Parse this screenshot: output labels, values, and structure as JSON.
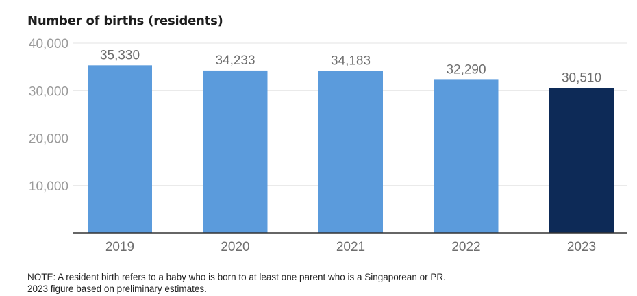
{
  "chart_data": {
    "type": "bar",
    "title": "Number of births (residents)",
    "categories": [
      "2019",
      "2020",
      "2021",
      "2022",
      "2023"
    ],
    "values": [
      35330,
      34233,
      34183,
      32290,
      30510
    ],
    "value_labels": [
      "35,330",
      "34,233",
      "34,183",
      "32,290",
      "30,510"
    ],
    "y_ticks": [
      10000,
      20000,
      30000,
      40000
    ],
    "y_tick_labels": [
      "10,000",
      "20,000",
      "30,000",
      "40,000"
    ],
    "ylim": [
      0,
      40000
    ],
    "xlabel": "",
    "ylabel": "",
    "grid": true,
    "colors": {
      "bar": "#5b9bdc",
      "highlight": "#0d2a57",
      "grid": "#e3e3e3",
      "axis": "#333333",
      "tick_text": "#9a9a9a",
      "label_text": "#6e6e6e"
    },
    "highlight_index": 4
  },
  "notes": [
    "NOTE: A resident birth refers to a baby who is born to at least one parent who is a Singaporean or PR.",
    "2023 figure based on preliminary estimates."
  ]
}
